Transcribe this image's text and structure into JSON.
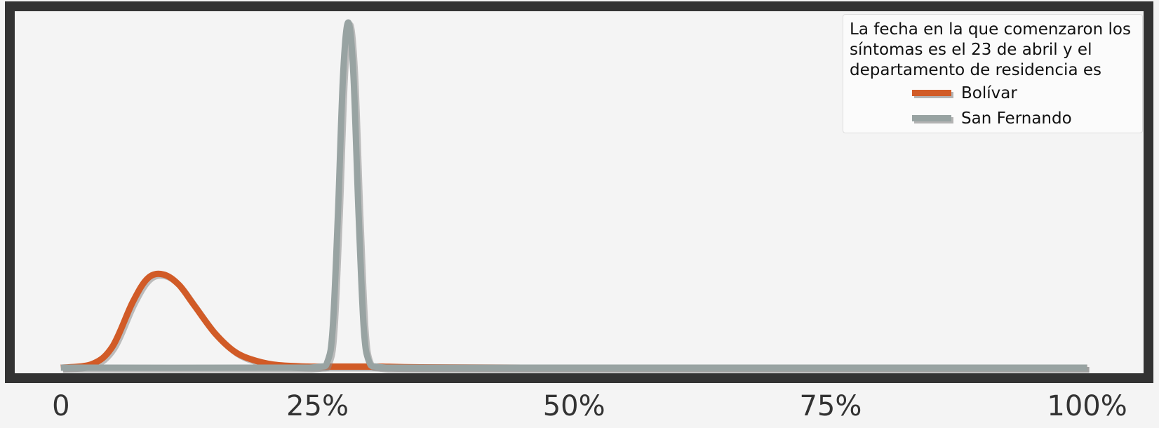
{
  "chart_data": {
    "type": "line",
    "title": "",
    "xlabel": "",
    "ylabel": "",
    "x_ticks": [
      {
        "value": 0,
        "label": "0"
      },
      {
        "value": 0.25,
        "label": "25%"
      },
      {
        "value": 0.5,
        "label": "50%"
      },
      {
        "value": 0.75,
        "label": "75%"
      },
      {
        "value": 1.0,
        "label": "100%"
      }
    ],
    "xlim": [
      -0.045,
      1.055
    ],
    "ylim": [
      0,
      1.07
    ],
    "grid": false,
    "legend": {
      "title": "La fecha en la que comenzaron los síntomas es el 23 de abril y el departamento de residencia es",
      "placement": "top-right"
    },
    "series": [
      {
        "name": "Bolívar",
        "color": "#d15b27",
        "x": [
          0,
          0.03,
          0.05,
          0.07,
          0.085,
          0.1,
          0.115,
          0.13,
          0.15,
          0.17,
          0.19,
          0.21,
          0.24,
          0.26,
          0.27,
          0.29,
          0.31,
          0.35,
          0.45,
          0.6,
          0.75,
          0.9,
          1.0
        ],
        "y": [
          0,
          0.01,
          0.06,
          0.19,
          0.26,
          0.27,
          0.24,
          0.18,
          0.1,
          0.045,
          0.02,
          0.008,
          0.003,
          0.003,
          0.003,
          0.003,
          0.003,
          0.001,
          0,
          0,
          0,
          0,
          0
        ]
      },
      {
        "name": "San Fernando",
        "color": "#98a3a2",
        "x": [
          0,
          0.2,
          0.25,
          0.26,
          0.265,
          0.27,
          0.275,
          0.28,
          0.285,
          0.29,
          0.295,
          0.3,
          0.31,
          0.35,
          0.5,
          0.75,
          1.0
        ],
        "y": [
          0,
          0,
          0.002,
          0.02,
          0.12,
          0.45,
          0.85,
          1.0,
          0.85,
          0.45,
          0.12,
          0.02,
          0.002,
          0,
          0,
          0,
          0
        ]
      }
    ]
  }
}
